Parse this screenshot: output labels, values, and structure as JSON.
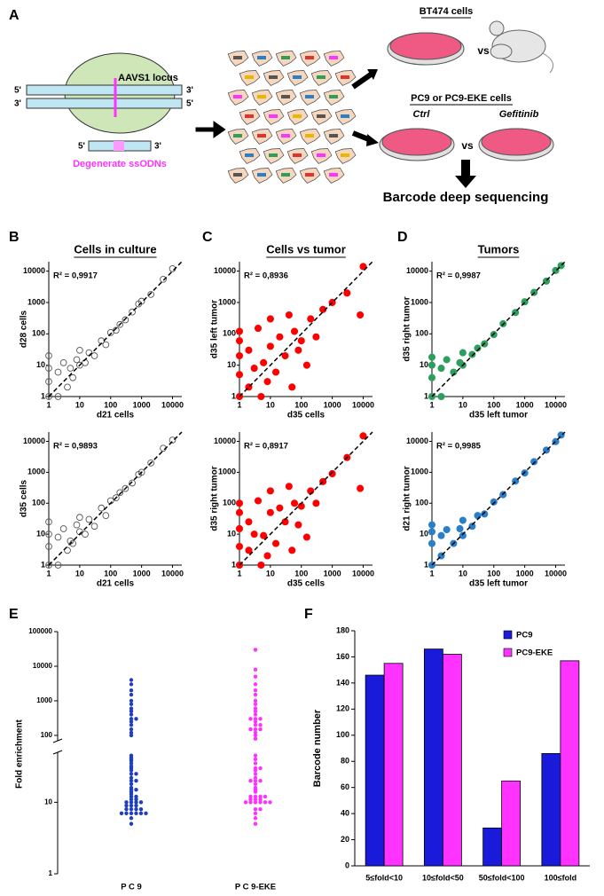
{
  "panel_labels": [
    "A",
    "B",
    "C",
    "D",
    "E",
    "F"
  ],
  "panel_titles": [
    "Cells in culture",
    "Cells vs tumor",
    "Tumors"
  ],
  "diagram": {
    "locus": "AAVS1 locus",
    "top_left": "5'",
    "top_right": "3'",
    "bottom_left": "3'",
    "bottom_right": "5'",
    "ssodn_left": "5'",
    "ssodn_right": "3'",
    "ssodn_label": "Degenerate ssODNs",
    "bt474": "BT474 cells",
    "vs_top": "vs",
    "pc9": "PC9 or PC9-EKE cells",
    "ctrl": "Ctrl",
    "gefitinib": "Gefitinib",
    "vs_bottom": "vs",
    "sequencing": "Barcode deep sequencing"
  },
  "chart_data": [
    {
      "type": "scatter",
      "annotation": "R² = 0,9917",
      "x_label": "d21 cells",
      "y_label": "d28 cells",
      "log_scale": true,
      "marker": "open",
      "color": "#555555",
      "fit_line": true,
      "xlim": [
        1,
        20000
      ],
      "ylim": [
        1,
        20000
      ],
      "xticks": [
        1,
        10,
        100,
        1000,
        10000
      ],
      "yticks": [
        1,
        10,
        100,
        1000,
        10000
      ],
      "x": [
        1,
        1,
        1,
        1,
        2,
        2,
        3,
        4,
        5,
        6,
        8,
        10,
        10,
        15,
        20,
        30,
        50,
        70,
        100,
        150,
        200,
        300,
        500,
        800,
        1000,
        2000,
        5000,
        10000
      ],
      "y": [
        1,
        3,
        8,
        20,
        1,
        6,
        12,
        2,
        8,
        4,
        15,
        10,
        30,
        12,
        25,
        20,
        60,
        45,
        110,
        130,
        200,
        280,
        500,
        900,
        1100,
        1800,
        5500,
        12000
      ]
    },
    {
      "type": "scatter",
      "annotation": "R² = 0,9893",
      "x_label": "d21 cells",
      "y_label": "d35 cells",
      "log_scale": true,
      "marker": "open",
      "color": "#555555",
      "fit_line": true,
      "xlim": [
        1,
        20000
      ],
      "ylim": [
        1,
        20000
      ],
      "xticks": [
        1,
        10,
        100,
        1000,
        10000
      ],
      "yticks": [
        1,
        10,
        100,
        1000,
        10000
      ],
      "x": [
        1,
        1,
        1,
        1,
        2,
        2,
        3,
        4,
        5,
        6,
        8,
        10,
        10,
        15,
        20,
        30,
        50,
        70,
        100,
        150,
        200,
        300,
        500,
        800,
        1000,
        2000,
        5000,
        10000
      ],
      "y": [
        1,
        4,
        10,
        25,
        1,
        8,
        15,
        3,
        6,
        5,
        20,
        12,
        35,
        10,
        30,
        18,
        70,
        40,
        120,
        150,
        220,
        300,
        450,
        850,
        1000,
        2000,
        6000,
        11000
      ]
    },
    {
      "type": "scatter",
      "annotation": "R² = 0,8936",
      "x_label": "d35 cells",
      "y_label": "d35 left tumor",
      "log_scale": true,
      "marker": "filled",
      "color": "#ff0000",
      "fit_line": true,
      "xlim": [
        1,
        20000
      ],
      "ylim": [
        1,
        20000
      ],
      "xticks": [
        1,
        10,
        100,
        1000,
        10000
      ],
      "yticks": [
        1,
        10,
        100,
        1000,
        10000
      ],
      "x": [
        1,
        1,
        1,
        1,
        1,
        2,
        2,
        3,
        4,
        5,
        6,
        8,
        10,
        10,
        15,
        20,
        30,
        40,
        50,
        60,
        80,
        100,
        150,
        200,
        300,
        500,
        1000,
        3000,
        8000,
        10000
      ],
      "y": [
        1,
        5,
        20,
        60,
        120,
        2,
        30,
        8,
        150,
        1,
        12,
        3,
        40,
        300,
        6,
        80,
        20,
        400,
        2,
        120,
        30,
        60,
        10,
        300,
        80,
        600,
        1000,
        2000,
        400,
        14000
      ]
    },
    {
      "type": "scatter",
      "annotation": "R² = 0,8917",
      "x_label": "d35 cells",
      "y_label": "d35 right tumor",
      "log_scale": true,
      "marker": "filled",
      "color": "#ff0000",
      "fit_line": true,
      "xlim": [
        1,
        20000
      ],
      "ylim": [
        1,
        20000
      ],
      "xticks": [
        1,
        10,
        100,
        1000,
        10000
      ],
      "yticks": [
        1,
        10,
        100,
        1000,
        10000
      ],
      "x": [
        1,
        1,
        1,
        1,
        1,
        2,
        2,
        3,
        4,
        5,
        6,
        8,
        10,
        10,
        15,
        20,
        30,
        40,
        50,
        60,
        80,
        100,
        150,
        200,
        300,
        500,
        1000,
        3000,
        8000,
        10000
      ],
      "y": [
        1,
        4,
        15,
        50,
        100,
        3,
        25,
        10,
        120,
        1,
        9,
        2,
        50,
        250,
        5,
        70,
        25,
        350,
        3,
        100,
        20,
        80,
        8,
        250,
        100,
        500,
        900,
        3000,
        300,
        15000
      ]
    },
    {
      "type": "scatter",
      "annotation": "R² = 0,9987",
      "x_label": "d35 left tumor",
      "y_label": "d35 right tumor",
      "log_scale": true,
      "marker": "filled",
      "color": "#2e9e5e",
      "fit_line": true,
      "xlim": [
        1,
        20000
      ],
      "ylim": [
        1,
        20000
      ],
      "xticks": [
        1,
        10,
        100,
        1000,
        10000
      ],
      "yticks": [
        1,
        10,
        100,
        1000,
        10000
      ],
      "x": [
        1,
        1,
        1,
        1,
        2,
        2,
        3,
        5,
        8,
        10,
        10,
        20,
        30,
        50,
        100,
        200,
        500,
        1000,
        2000,
        5000,
        10000,
        15000
      ],
      "y": [
        1,
        4,
        10,
        18,
        1,
        8,
        15,
        6,
        12,
        10,
        25,
        22,
        35,
        48,
        95,
        210,
        480,
        1050,
        2100,
        4800,
        10500,
        15000
      ]
    },
    {
      "type": "scatter",
      "annotation": "R² = 0,9985",
      "x_label": "d35 left tumor",
      "y_label": "d21 right tumor",
      "log_scale": true,
      "marker": "filled",
      "color": "#2a7fc9",
      "fit_line": true,
      "xlim": [
        1,
        20000
      ],
      "ylim": [
        1,
        20000
      ],
      "xticks": [
        1,
        10,
        100,
        1000,
        10000
      ],
      "yticks": [
        1,
        10,
        100,
        1000,
        10000
      ],
      "x": [
        1,
        1,
        1,
        1,
        2,
        2,
        3,
        5,
        8,
        10,
        10,
        20,
        30,
        50,
        100,
        200,
        500,
        1000,
        2000,
        5000,
        10000,
        15000
      ],
      "y": [
        1,
        5,
        12,
        20,
        2,
        9,
        14,
        5,
        15,
        9,
        28,
        18,
        40,
        45,
        110,
        190,
        520,
        950,
        2200,
        5200,
        9800,
        16000
      ]
    },
    {
      "type": "strip",
      "y_label": "Fold enrichment",
      "log_scale": true,
      "categories": [
        "P C 9",
        "P C 9-EKE"
      ],
      "ylim": [
        1,
        100000
      ],
      "yticks": [
        1,
        10,
        100,
        1000,
        10000,
        100000
      ],
      "axis_break": [
        50,
        70
      ],
      "series": [
        {
          "color": "#1f3fbf",
          "values": [
            5,
            6,
            7,
            7,
            7,
            7,
            7,
            7,
            8,
            8,
            8,
            8,
            9,
            9,
            9,
            10,
            10,
            10,
            10,
            11,
            11,
            12,
            12,
            13,
            14,
            15,
            15,
            16,
            18,
            20,
            20,
            22,
            25,
            25,
            28,
            30,
            32,
            35,
            38,
            40,
            42,
            45,
            100,
            120,
            150,
            200,
            250,
            300,
            300,
            400,
            500,
            600,
            800,
            1000,
            1500,
            2000,
            3000,
            4000
          ]
        },
        {
          "color": "#ff33ff",
          "values": [
            5,
            6,
            7,
            8,
            8,
            10,
            10,
            10,
            10,
            10,
            10,
            11,
            11,
            11,
            12,
            12,
            12,
            12,
            14,
            15,
            16,
            18,
            20,
            20,
            20,
            22,
            25,
            28,
            30,
            30,
            35,
            40,
            45,
            80,
            100,
            120,
            150,
            150,
            150,
            200,
            200,
            250,
            300,
            300,
            300,
            400,
            500,
            600,
            800,
            1000,
            1500,
            2000,
            3000,
            5000,
            8000,
            30000
          ]
        }
      ]
    },
    {
      "type": "bar",
      "y_label": "Barcode number",
      "categories": [
        "5≤fold<10",
        "10≤fold<50",
        "50≤fold<100",
        "100≤fold"
      ],
      "ylim": [
        0,
        180
      ],
      "yticks": [
        0,
        20,
        40,
        60,
        80,
        100,
        120,
        140,
        160,
        180
      ],
      "legend": "top-right",
      "series": [
        {
          "name": "PC9",
          "color": "#1a1adb",
          "values": [
            146,
            166,
            29,
            86
          ]
        },
        {
          "name": "PC9-EKE",
          "color": "#ff33ff",
          "values": [
            155,
            162,
            65,
            157
          ]
        }
      ]
    }
  ]
}
